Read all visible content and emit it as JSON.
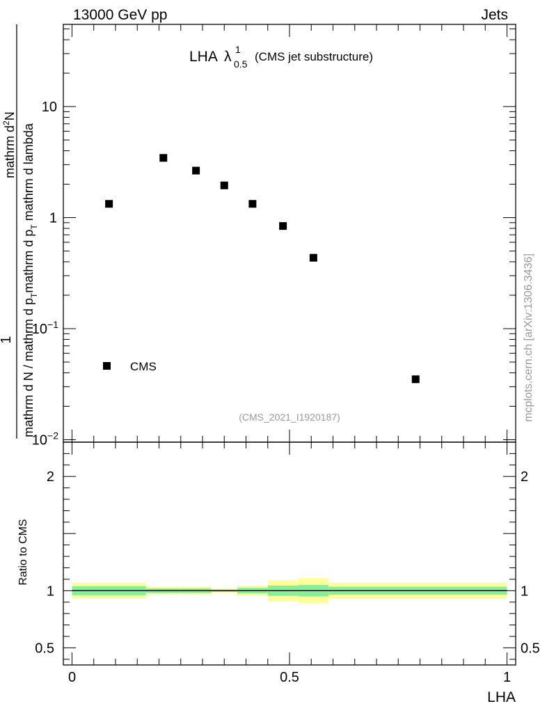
{
  "header": {
    "left": "13000 GeV pp",
    "right": "Jets"
  },
  "side_label": "mcplots.cern.ch [arXiv:1306.3436]",
  "chart_data": [
    {
      "type": "scatter",
      "title": {
        "prefix": "LHA ",
        "symbol": "λ",
        "superscript": "1",
        "subscript": "0.5",
        "suffix": "(CMS jet substructure)"
      },
      "watermark": "(CMS_2021_I1920187)",
      "ylabel": {
        "numerator": "1",
        "denominator_line1": "mathrm d N / mathrm d p",
        "denominator_sub1": "T",
        "denominator_line1b": "mathrm d p",
        "denominator_sub2": "T",
        "denominator_line1c": " mathrm d lambda",
        "top": "mathrm d",
        "top_sup": "2",
        "top_rest": "N"
      },
      "yscale": "log",
      "ylim": [
        0.0095,
        55
      ],
      "xlim": [
        -0.02,
        1.02
      ],
      "y_ticks": [
        {
          "value": 10,
          "label": "10"
        },
        {
          "value": 1,
          "label": "1"
        },
        {
          "value": 0.1,
          "label": "10",
          "sup": "−1"
        },
        {
          "value": 0.01,
          "label": "10",
          "sup": "−2"
        }
      ],
      "legend": {
        "position": "bottom-left",
        "entries": [
          "CMS"
        ]
      },
      "series": [
        {
          "name": "CMS",
          "marker": "square",
          "color": "#000000",
          "points": [
            {
              "x": 0.085,
              "y": 1.33
            },
            {
              "x": 0.21,
              "y": 3.45
            },
            {
              "x": 0.285,
              "y": 2.65
            },
            {
              "x": 0.35,
              "y": 1.95
            },
            {
              "x": 0.415,
              "y": 1.33
            },
            {
              "x": 0.485,
              "y": 0.84
            },
            {
              "x": 0.555,
              "y": 0.435
            },
            {
              "x": 0.79,
              "y": 0.035
            }
          ]
        }
      ]
    },
    {
      "type": "line",
      "ylabel": "Ratio to CMS",
      "xlabel": "LHA",
      "xlim": [
        -0.02,
        1.02
      ],
      "ylim": [
        0.35,
        2.3
      ],
      "x_ticks": [
        {
          "value": 0,
          "label": "0"
        },
        {
          "value": 0.5,
          "label": "0.5"
        },
        {
          "value": 1,
          "label": "1"
        }
      ],
      "y_ticks": [
        {
          "value": 2,
          "label": "2"
        },
        {
          "value": 1,
          "label": "1"
        },
        {
          "value": 0.5,
          "label": "0.5"
        }
      ],
      "reference_line": 1,
      "bands": {
        "outer_color": "#ffff99",
        "inner_color": "#88ee99",
        "bins": [
          {
            "x0": 0.0,
            "x1": 0.17,
            "outer": 0.07,
            "inner": 0.04
          },
          {
            "x0": 0.17,
            "x1": 0.25,
            "outer": 0.035,
            "inner": 0.02
          },
          {
            "x0": 0.25,
            "x1": 0.32,
            "outer": 0.035,
            "inner": 0.02
          },
          {
            "x0": 0.32,
            "x1": 0.38,
            "outer": 0.02,
            "inner": 0.01
          },
          {
            "x0": 0.38,
            "x1": 0.45,
            "outer": 0.045,
            "inner": 0.025
          },
          {
            "x0": 0.45,
            "x1": 0.52,
            "outer": 0.09,
            "inner": 0.045
          },
          {
            "x0": 0.52,
            "x1": 0.59,
            "outer": 0.11,
            "inner": 0.05
          },
          {
            "x0": 0.59,
            "x1": 1.0,
            "outer": 0.07,
            "inner": 0.035
          }
        ]
      }
    }
  ]
}
